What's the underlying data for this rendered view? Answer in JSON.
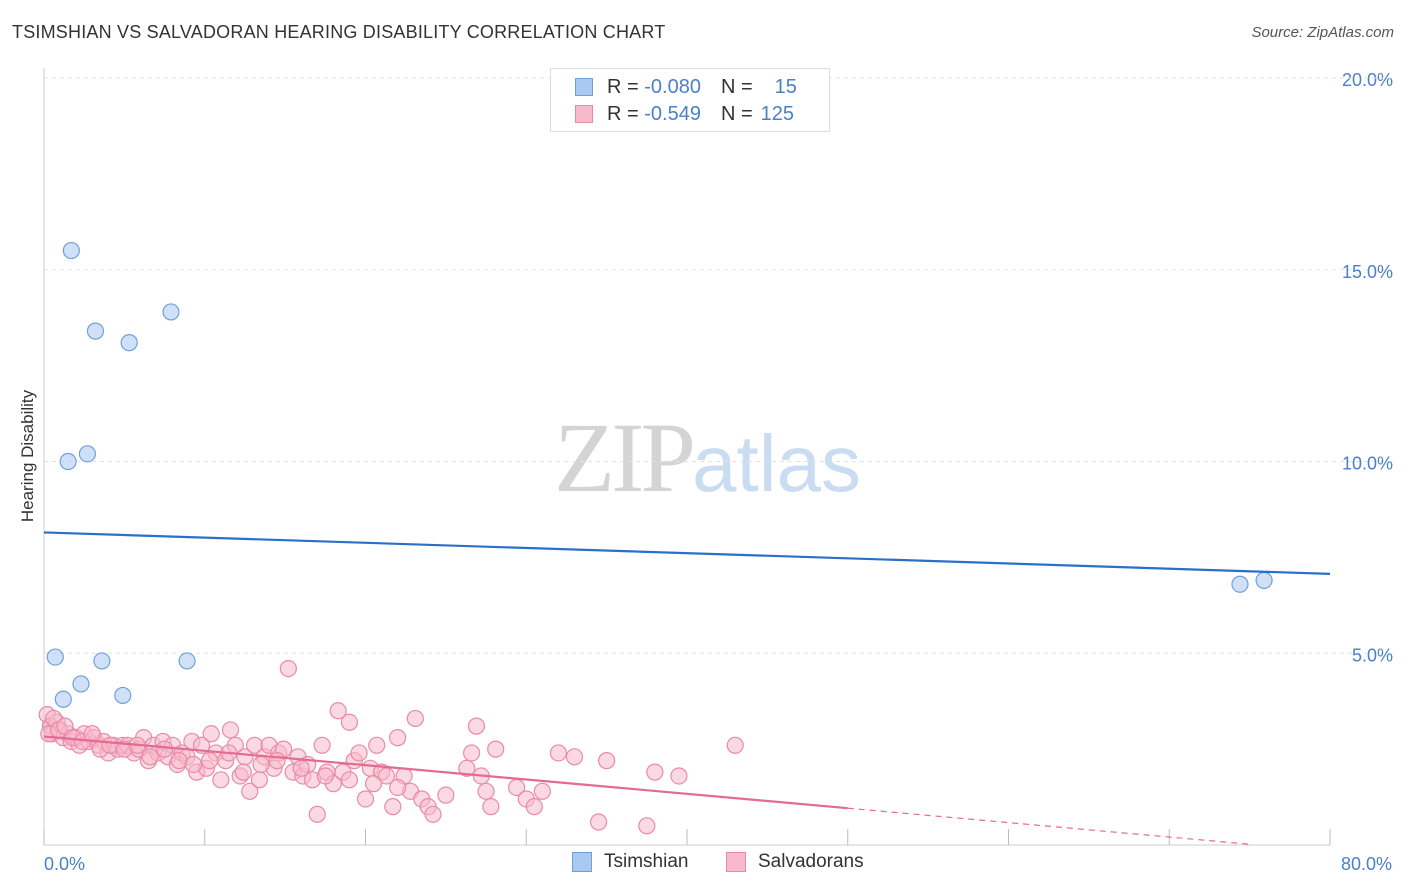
{
  "title": "TSIMSHIAN VS SALVADORAN HEARING DISABILITY CORRELATION CHART",
  "source": "Source: ZipAtlas.com",
  "watermark": {
    "zip": "ZIP",
    "atlas": "atlas"
  },
  "legend_stats": [
    {
      "r_label": "R =",
      "r_value": "-0.080",
      "n_label": "N =",
      "n_value": "15",
      "color": "#a9c9f0",
      "border": "#6fa0dc"
    },
    {
      "r_label": "R =",
      "r_value": "-0.549",
      "n_label": "N =",
      "n_value": "125",
      "color": "#f7b9cc",
      "border": "#e98aa8"
    }
  ],
  "bottom_legend": [
    {
      "label": "Tsimshian",
      "color": "#a9c9f0",
      "border": "#6fa0dc"
    },
    {
      "label": "Salvadorans",
      "color": "#f7b9cc",
      "border": "#e98aa8"
    }
  ],
  "chart_data": {
    "type": "scatter",
    "ylabel": "Hearing Disability",
    "xlim": [
      0,
      80
    ],
    "ylim": [
      0,
      20
    ],
    "x_tick_labels": [
      {
        "value": 0,
        "label": "0.0%"
      },
      {
        "value": 80,
        "label": "80.0%"
      }
    ],
    "y_tick_labels": [
      {
        "value": 5,
        "label": "5.0%"
      },
      {
        "value": 10,
        "label": "10.0%"
      },
      {
        "value": 15,
        "label": "15.0%"
      },
      {
        "value": 20,
        "label": "20.0%"
      }
    ],
    "grid": true,
    "series": [
      {
        "name": "Tsimshian",
        "color": "#6fa0dc",
        "fill": "#a9c9f0",
        "line_color": "#2b6fca",
        "points": [
          [
            1.7,
            15.5
          ],
          [
            3.2,
            13.4
          ],
          [
            5.3,
            13.1
          ],
          [
            7.9,
            13.9
          ],
          [
            1.5,
            10.0
          ],
          [
            2.7,
            10.2
          ],
          [
            0.7,
            4.9
          ],
          [
            3.6,
            4.8
          ],
          [
            8.9,
            4.8
          ],
          [
            2.3,
            4.2
          ],
          [
            4.9,
            3.9
          ],
          [
            1.2,
            3.8
          ],
          [
            74.4,
            6.8
          ],
          [
            75.9,
            6.9
          ],
          [
            0.4,
            3.1
          ]
        ],
        "trend": {
          "x": [
            0,
            80
          ],
          "y": [
            8.15,
            7.07
          ]
        }
      },
      {
        "name": "Salvadorans",
        "color": "#e98aa8",
        "fill": "#f7b9cc",
        "line_color": "#e46a93",
        "points": [
          [
            0.2,
            3.4
          ],
          [
            0.4,
            3.1
          ],
          [
            0.5,
            2.9
          ],
          [
            0.8,
            3.2
          ],
          [
            1.0,
            3.0
          ],
          [
            1.2,
            2.8
          ],
          [
            1.5,
            2.9
          ],
          [
            1.7,
            2.7
          ],
          [
            2.0,
            2.8
          ],
          [
            2.2,
            2.6
          ],
          [
            2.5,
            2.9
          ],
          [
            2.8,
            2.7
          ],
          [
            3.1,
            2.8
          ],
          [
            3.4,
            2.6
          ],
          [
            3.7,
            2.7
          ],
          [
            4.0,
            2.4
          ],
          [
            4.3,
            2.6
          ],
          [
            4.6,
            2.5
          ],
          [
            4.9,
            2.6
          ],
          [
            5.2,
            2.6
          ],
          [
            5.6,
            2.4
          ],
          [
            5.9,
            2.5
          ],
          [
            6.2,
            2.8
          ],
          [
            6.5,
            2.2
          ],
          [
            6.8,
            2.6
          ],
          [
            7.1,
            2.4
          ],
          [
            7.4,
            2.7
          ],
          [
            7.7,
            2.3
          ],
          [
            8.0,
            2.6
          ],
          [
            8.3,
            2.1
          ],
          [
            8.6,
            2.4
          ],
          [
            8.9,
            2.3
          ],
          [
            9.2,
            2.7
          ],
          [
            9.5,
            1.9
          ],
          [
            9.8,
            2.6
          ],
          [
            10.1,
            2.0
          ],
          [
            10.4,
            2.9
          ],
          [
            10.7,
            2.4
          ],
          [
            11.0,
            1.7
          ],
          [
            11.3,
            2.2
          ],
          [
            11.6,
            3.0
          ],
          [
            11.9,
            2.6
          ],
          [
            12.2,
            1.8
          ],
          [
            12.5,
            2.3
          ],
          [
            12.8,
            1.4
          ],
          [
            13.1,
            2.6
          ],
          [
            13.4,
            1.7
          ],
          [
            13.7,
            2.3
          ],
          [
            14.0,
            2.6
          ],
          [
            14.3,
            2.0
          ],
          [
            14.6,
            2.4
          ],
          [
            14.9,
            2.5
          ],
          [
            15.2,
            4.6
          ],
          [
            15.5,
            1.9
          ],
          [
            15.8,
            2.3
          ],
          [
            16.1,
            1.8
          ],
          [
            16.4,
            2.1
          ],
          [
            16.7,
            1.7
          ],
          [
            17.0,
            0.8
          ],
          [
            17.3,
            2.6
          ],
          [
            17.6,
            1.9
          ],
          [
            18.0,
            1.6
          ],
          [
            18.3,
            3.5
          ],
          [
            18.6,
            1.9
          ],
          [
            19.0,
            3.2
          ],
          [
            19.3,
            2.2
          ],
          [
            19.6,
            2.4
          ],
          [
            20.0,
            1.2
          ],
          [
            20.3,
            2.0
          ],
          [
            20.7,
            2.6
          ],
          [
            21.0,
            1.9
          ],
          [
            21.3,
            1.8
          ],
          [
            21.7,
            1.0
          ],
          [
            22.0,
            2.8
          ],
          [
            22.4,
            1.8
          ],
          [
            22.8,
            1.4
          ],
          [
            23.1,
            3.3
          ],
          [
            23.5,
            1.2
          ],
          [
            23.9,
            1.0
          ],
          [
            24.2,
            0.8
          ],
          [
            26.3,
            2.0
          ],
          [
            26.6,
            2.4
          ],
          [
            26.9,
            3.1
          ],
          [
            27.2,
            1.8
          ],
          [
            27.5,
            1.4
          ],
          [
            27.8,
            1.0
          ],
          [
            28.1,
            2.5
          ],
          [
            29.4,
            1.5
          ],
          [
            30.0,
            1.2
          ],
          [
            30.5,
            1.0
          ],
          [
            31.0,
            1.4
          ],
          [
            32.0,
            2.4
          ],
          [
            33.0,
            2.3
          ],
          [
            34.5,
            0.6
          ],
          [
            35.0,
            2.2
          ],
          [
            37.5,
            0.5
          ],
          [
            38.0,
            1.9
          ],
          [
            39.5,
            1.8
          ],
          [
            43.0,
            2.6
          ],
          [
            0.3,
            2.9
          ],
          [
            0.6,
            3.3
          ],
          [
            0.9,
            3.0
          ],
          [
            1.3,
            3.1
          ],
          [
            1.8,
            2.8
          ],
          [
            2.4,
            2.7
          ],
          [
            3.0,
            2.9
          ],
          [
            3.5,
            2.5
          ],
          [
            4.1,
            2.6
          ],
          [
            5.0,
            2.5
          ],
          [
            5.8,
            2.6
          ],
          [
            6.6,
            2.3
          ],
          [
            7.5,
            2.5
          ],
          [
            8.4,
            2.2
          ],
          [
            9.3,
            2.1
          ],
          [
            10.3,
            2.2
          ],
          [
            11.5,
            2.4
          ],
          [
            12.4,
            1.9
          ],
          [
            13.5,
            2.1
          ],
          [
            14.5,
            2.2
          ],
          [
            16.0,
            2.0
          ],
          [
            17.5,
            1.8
          ],
          [
            19.0,
            1.7
          ],
          [
            20.5,
            1.6
          ],
          [
            22.0,
            1.5
          ],
          [
            25.0,
            1.3
          ]
        ],
        "trend": {
          "x": [
            0,
            50
          ],
          "y": [
            2.83,
            0.96
          ]
        },
        "trend_dashed": {
          "x": [
            50,
            75
          ],
          "y": [
            0.96,
            0.02
          ]
        }
      }
    ]
  }
}
